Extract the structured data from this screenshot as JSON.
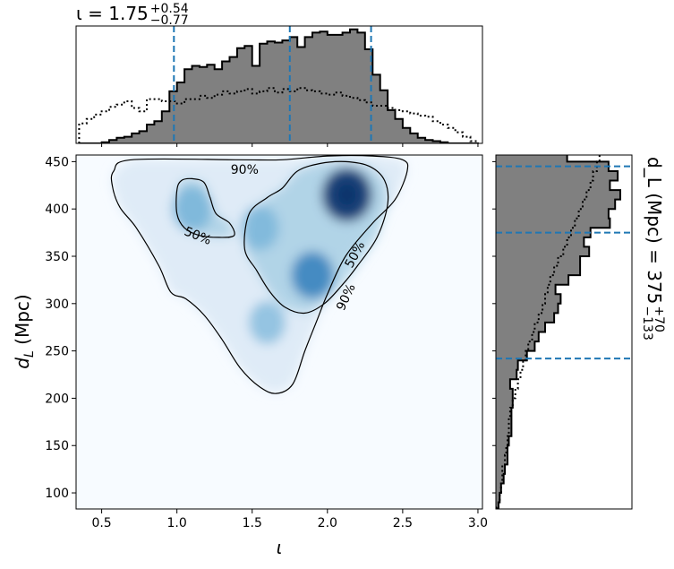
{
  "chart_data": [
    {
      "type": "heatmap",
      "panel": "joint",
      "x_quantity": "ι",
      "y_quantity": "d_L (Mpc)",
      "xlim": [
        0.33,
        3.03
      ],
      "ylim": [
        83,
        457
      ],
      "x_ticks": [
        0.5,
        1.0,
        1.5,
        2.0,
        2.5,
        3.0
      ],
      "x_tick_labels": [
        "0.5",
        "1.0",
        "1.5",
        "2.0",
        "2.5",
        "3.0"
      ],
      "y_ticks": [
        100,
        150,
        200,
        250,
        300,
        350,
        400,
        450
      ],
      "y_tick_labels": [
        "100",
        "150",
        "200",
        "250",
        "300",
        "350",
        "400",
        "450"
      ],
      "colormap": "Blues",
      "density_peaks": [
        {
          "x": 2.13,
          "y": 415,
          "weight": 1.0
        },
        {
          "x": 1.9,
          "y": 330,
          "weight": 0.55
        },
        {
          "x": 1.1,
          "y": 400,
          "weight": 0.45
        },
        {
          "x": 1.55,
          "y": 380,
          "weight": 0.35
        },
        {
          "x": 1.6,
          "y": 280,
          "weight": 0.25
        }
      ],
      "contours": [
        {
          "label": "90%",
          "points": [
            [
              0.57,
              425
            ],
            [
              0.58,
              440
            ],
            [
              0.7,
              452
            ],
            [
              1.4,
              452
            ],
            [
              1.7,
              452
            ],
            [
              2.0,
              456
            ],
            [
              2.3,
              456
            ],
            [
              2.5,
              452
            ],
            [
              2.53,
              440
            ],
            [
              2.45,
              410
            ],
            [
              2.3,
              385
            ],
            [
              2.12,
              350
            ],
            [
              2.0,
              310
            ],
            [
              1.93,
              282
            ],
            [
              1.85,
              250
            ],
            [
              1.77,
              215
            ],
            [
              1.66,
              205
            ],
            [
              1.55,
              212
            ],
            [
              1.42,
              232
            ],
            [
              1.3,
              262
            ],
            [
              1.18,
              288
            ],
            [
              1.06,
              305
            ],
            [
              0.96,
              312
            ],
            [
              0.88,
              340
            ],
            [
              0.73,
              380
            ],
            [
              0.62,
              402
            ],
            [
              0.57,
              425
            ]
          ]
        },
        {
          "label": "50%",
          "points": [
            [
              1.45,
              358
            ],
            [
              1.48,
              395
            ],
            [
              1.6,
              412
            ],
            [
              1.7,
              422
            ],
            [
              1.8,
              440
            ],
            [
              1.95,
              448
            ],
            [
              2.12,
              450
            ],
            [
              2.28,
              445
            ],
            [
              2.38,
              430
            ],
            [
              2.4,
              405
            ],
            [
              2.33,
              370
            ],
            [
              2.2,
              340
            ],
            [
              2.1,
              320
            ],
            [
              1.98,
              300
            ],
            [
              1.85,
              290
            ],
            [
              1.72,
              296
            ],
            [
              1.62,
              312
            ],
            [
              1.53,
              335
            ],
            [
              1.45,
              358
            ]
          ]
        },
        {
          "label": "50%",
          "points": [
            [
              1.0,
              420
            ],
            [
              1.0,
              395
            ],
            [
              1.05,
              380
            ],
            [
              1.15,
              372
            ],
            [
              1.28,
              370
            ],
            [
              1.38,
              372
            ],
            [
              1.35,
              385
            ],
            [
              1.26,
              395
            ],
            [
              1.22,
              412
            ],
            [
              1.18,
              428
            ],
            [
              1.1,
              432
            ],
            [
              1.03,
              430
            ],
            [
              1.0,
              420
            ]
          ]
        }
      ],
      "contour_labels": [
        {
          "text": "90%",
          "x": 1.45,
          "y": 442
        },
        {
          "text": "50%",
          "x": 1.14,
          "y": 372
        },
        {
          "text": "50%",
          "x": 2.18,
          "y": 352
        },
        {
          "text": "90%",
          "x": 2.12,
          "y": 307
        }
      ]
    },
    {
      "type": "bar",
      "panel": "top-marginal",
      "quantity": "ι",
      "style": "step-filled histogram (gray, black outline) with dotted prior",
      "bins": [
        0.35,
        0.4,
        0.45,
        0.5,
        0.55,
        0.6,
        0.65,
        0.7,
        0.75,
        0.8,
        0.85,
        0.9,
        0.95,
        1.0,
        1.05,
        1.1,
        1.15,
        1.2,
        1.25,
        1.3,
        1.35,
        1.4,
        1.45,
        1.5,
        1.55,
        1.6,
        1.65,
        1.7,
        1.75,
        1.8,
        1.85,
        1.9,
        1.95,
        2.0,
        2.05,
        2.1,
        2.15,
        2.2,
        2.25,
        2.3,
        2.35,
        2.4,
        2.45,
        2.5,
        2.55,
        2.6,
        2.65,
        2.7,
        2.75,
        2.8,
        2.85,
        2.9,
        2.95,
        3.0
      ],
      "posterior": [
        0.0,
        0.0,
        0.0,
        0.01,
        0.03,
        0.05,
        0.06,
        0.09,
        0.11,
        0.17,
        0.2,
        0.29,
        0.47,
        0.55,
        0.67,
        0.7,
        0.69,
        0.71,
        0.67,
        0.74,
        0.78,
        0.86,
        0.88,
        0.7,
        0.9,
        0.92,
        0.91,
        0.93,
        0.96,
        0.87,
        0.96,
        1.0,
        1.01,
        0.98,
        0.98,
        1.0,
        1.03,
        1.0,
        0.85,
        0.62,
        0.48,
        0.3,
        0.22,
        0.14,
        0.09,
        0.05,
        0.03,
        0.02,
        0.01,
        0.0,
        0.0,
        0.0,
        0.0
      ],
      "prior": [
        0.18,
        0.22,
        0.26,
        0.29,
        0.33,
        0.35,
        0.38,
        0.32,
        0.29,
        0.4,
        0.4,
        0.38,
        0.38,
        0.36,
        0.4,
        0.4,
        0.43,
        0.41,
        0.44,
        0.47,
        0.45,
        0.47,
        0.49,
        0.45,
        0.47,
        0.5,
        0.46,
        0.49,
        0.47,
        0.5,
        0.48,
        0.47,
        0.45,
        0.44,
        0.46,
        0.43,
        0.41,
        0.39,
        0.37,
        0.34,
        0.34,
        0.32,
        0.3,
        0.29,
        0.27,
        0.25,
        0.24,
        0.2,
        0.17,
        0.14,
        0.1,
        0.06,
        0.02
      ],
      "quantile_lines": [
        0.98,
        1.75,
        2.29
      ],
      "title": "ι = 1.75",
      "title_sup": "+0.54",
      "title_sub": "−0.77"
    },
    {
      "type": "bar",
      "panel": "right-marginal",
      "quantity": "d_L (Mpc)",
      "style": "step-filled histogram (gray, black outline) with dotted prior, horizontal",
      "bins": [
        85,
        95,
        105,
        115,
        125,
        135,
        145,
        155,
        165,
        175,
        185,
        195,
        205,
        215,
        225,
        235,
        245,
        255,
        265,
        275,
        285,
        295,
        305,
        315,
        325,
        335,
        345,
        355,
        365,
        375,
        385,
        395,
        405,
        415,
        425,
        435,
        445,
        455
      ],
      "posterior": [
        0.02,
        0.03,
        0.04,
        0.06,
        0.07,
        0.09,
        0.09,
        0.1,
        0.12,
        0.12,
        0.12,
        0.13,
        0.13,
        0.11,
        0.16,
        0.17,
        0.24,
        0.3,
        0.33,
        0.38,
        0.45,
        0.48,
        0.5,
        0.46,
        0.56,
        0.65,
        0.65,
        0.72,
        0.68,
        0.73,
        0.88,
        0.87,
        0.92,
        0.96,
        0.88,
        0.94,
        0.87,
        0.55
      ],
      "prior": [
        0.02,
        0.03,
        0.04,
        0.05,
        0.05,
        0.07,
        0.08,
        0.09,
        0.1,
        0.1,
        0.11,
        0.13,
        0.15,
        0.17,
        0.19,
        0.21,
        0.23,
        0.25,
        0.28,
        0.3,
        0.33,
        0.36,
        0.38,
        0.4,
        0.42,
        0.45,
        0.48,
        0.52,
        0.55,
        0.58,
        0.61,
        0.64,
        0.67,
        0.7,
        0.73,
        0.75,
        0.78,
        0.8
      ],
      "quantile_lines": [
        242,
        375,
        445
      ],
      "title": "d_L (Mpc) = 375",
      "title_sup": "+70",
      "title_sub": "−133"
    }
  ],
  "axis_labels": {
    "x_main": "ι",
    "y_main_d": "d",
    "y_main_sub": "L",
    "y_main_unit": " (Mpc)"
  },
  "colors": {
    "quantile_line": "#1f77b4",
    "hist_fill": "#808080",
    "contour": "#000000"
  }
}
